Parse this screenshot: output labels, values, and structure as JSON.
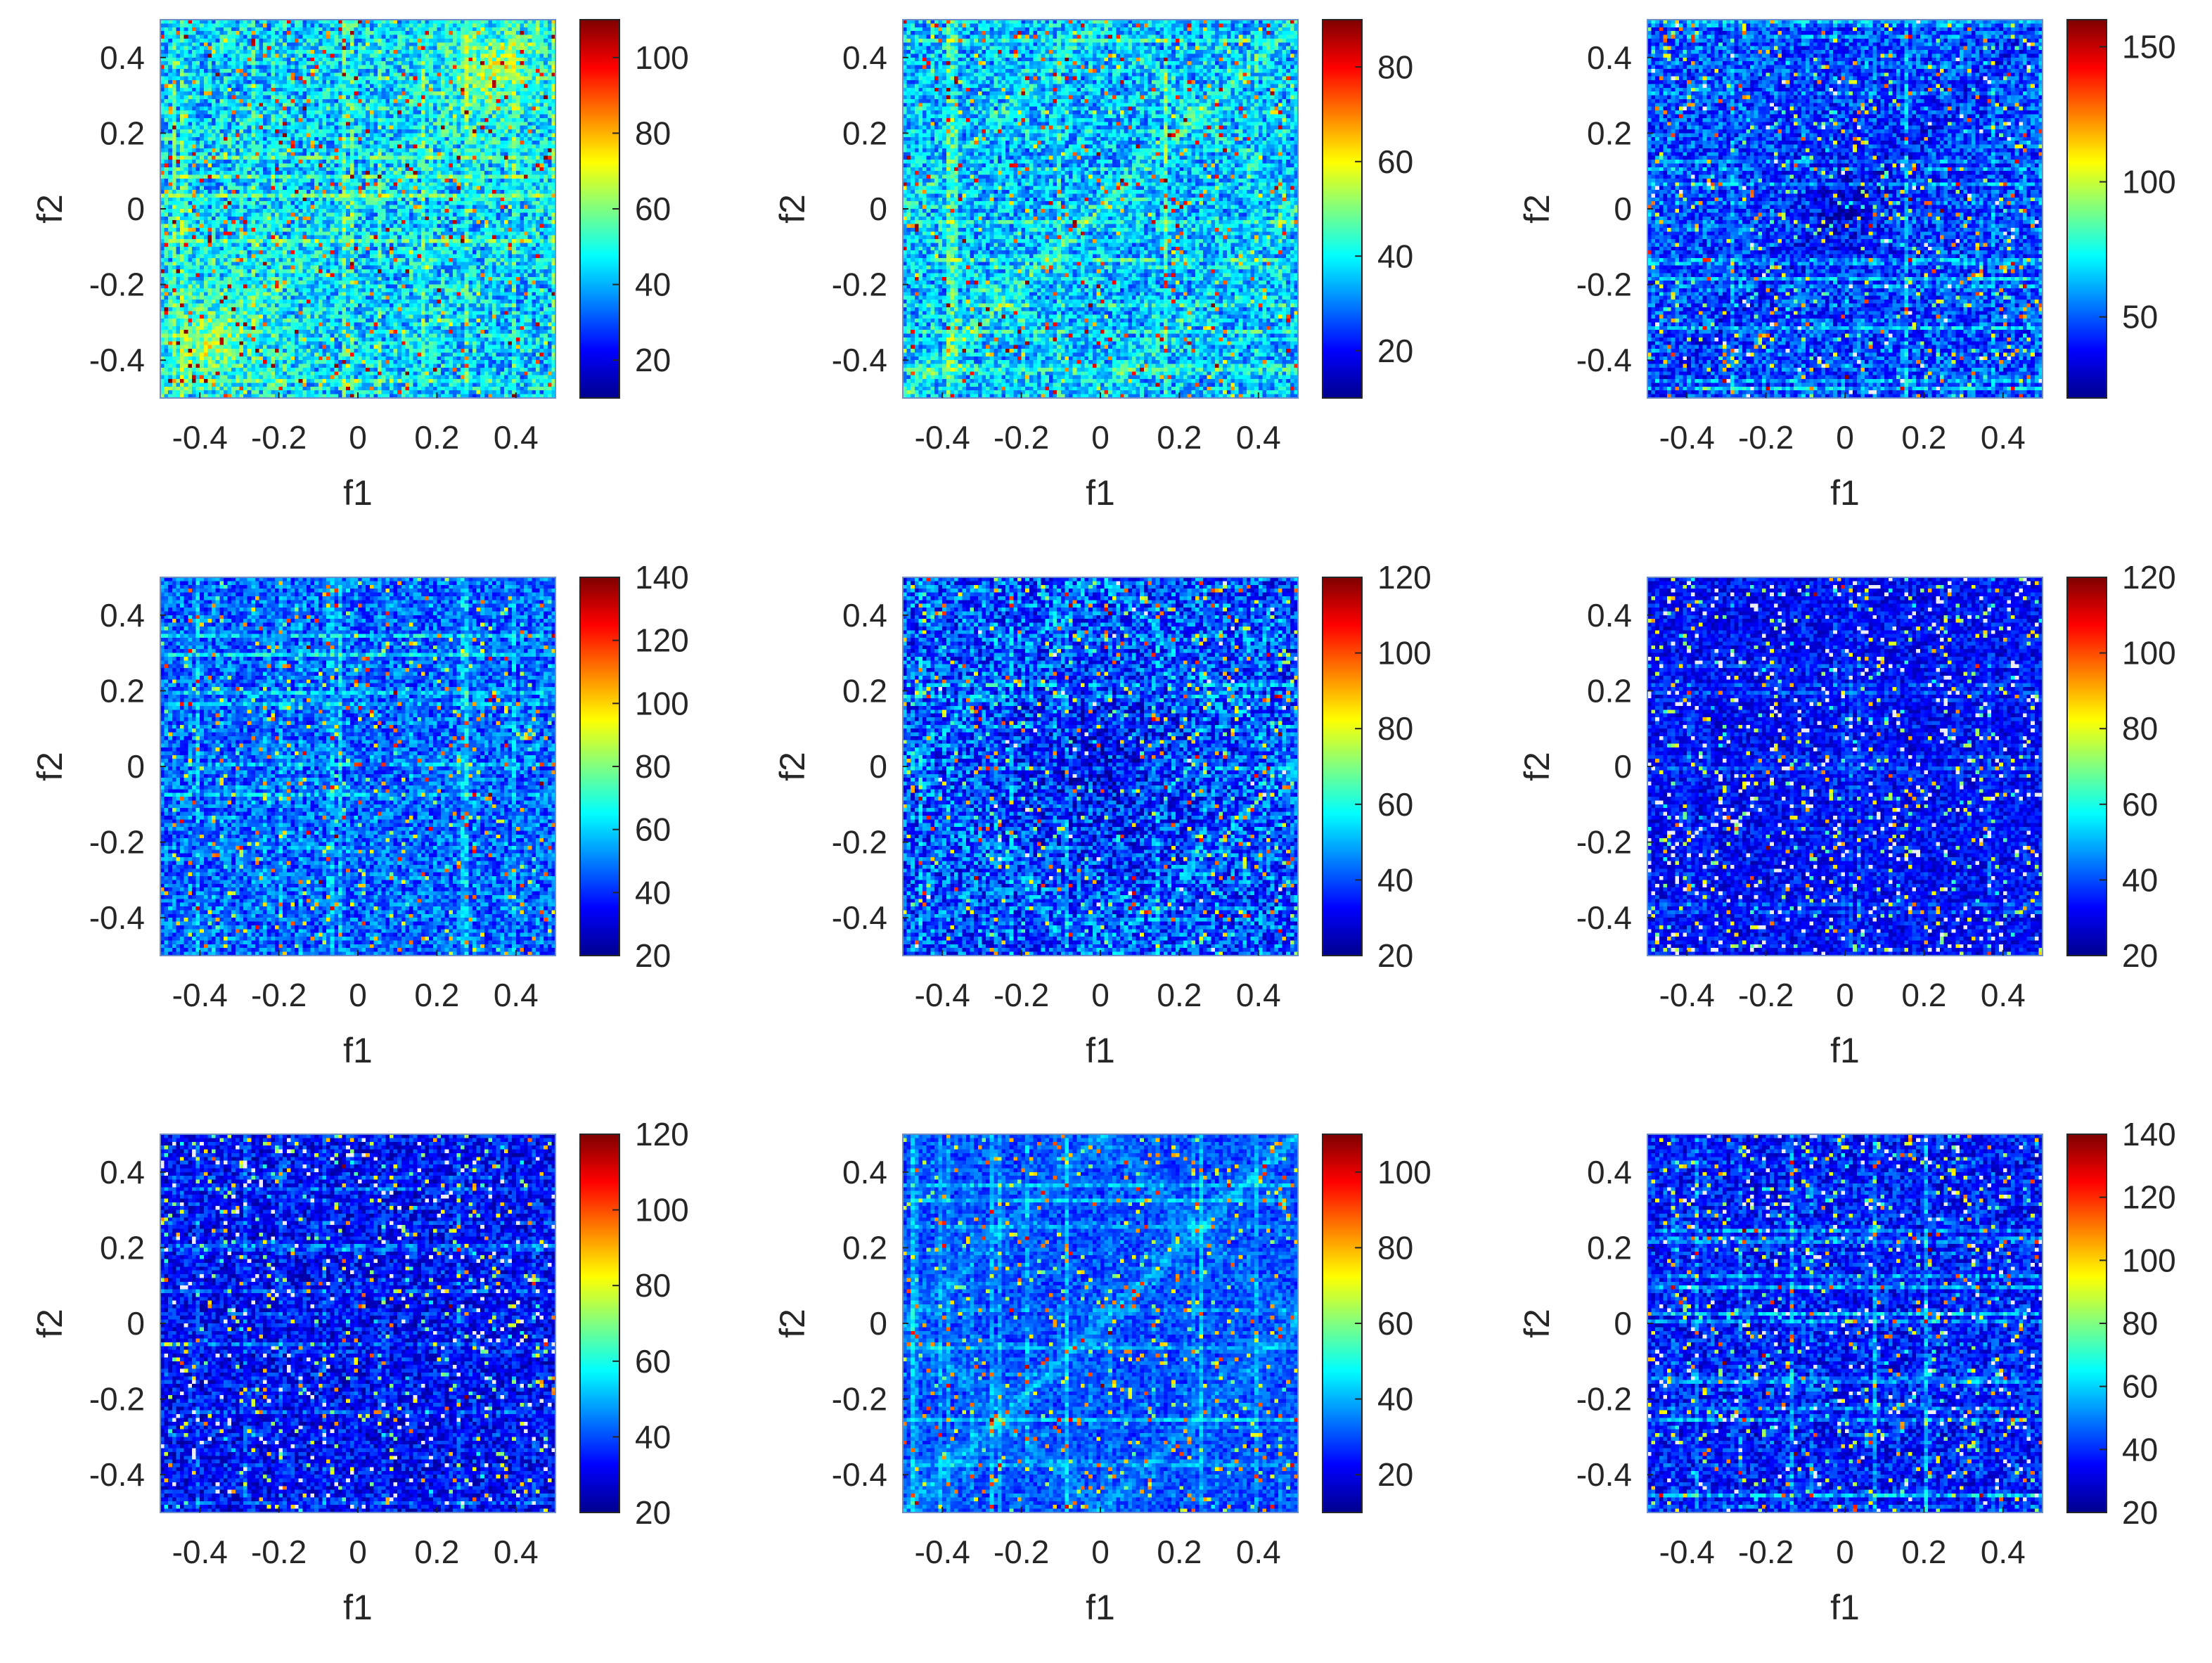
{
  "figure": {
    "rows": 3,
    "cols": 3,
    "colormap": "jet",
    "colormap_stops": [
      "#00008f",
      "#0000ff",
      "#0080ff",
      "#00ffff",
      "#80ff80",
      "#ffff00",
      "#ff8000",
      "#ff0000",
      "#800000"
    ],
    "axis_color": "#262626"
  },
  "chart_data": [
    {
      "type": "heatmap",
      "xlabel": "f1",
      "ylabel": "f2",
      "xlim": [
        -0.5,
        0.5
      ],
      "ylim": [
        -0.5,
        0.5
      ],
      "xticks": [
        -0.4,
        -0.2,
        0,
        0.2,
        0.4
      ],
      "xtick_labels": [
        "-0.4",
        "-0.2",
        "0",
        "0.2",
        "0.4"
      ],
      "yticks": [
        0.4,
        0.2,
        0,
        -0.2,
        -0.4
      ],
      "ytick_labels": [
        "0.4",
        "0.2",
        "0",
        "-0.2",
        "-0.4"
      ],
      "colorbar": {
        "clim": [
          10,
          110
        ],
        "ticks": [
          20,
          40,
          60,
          80,
          100
        ],
        "tick_labels": [
          "20",
          "40",
          "60",
          "80",
          "100"
        ]
      },
      "pattern": {
        "seed": 11,
        "base": 0.32,
        "speckle": 0.28,
        "diag": 0.06,
        "grid": 0.1,
        "corners": 0.25,
        "white": 0.0,
        "dark_center": 0.0
      }
    },
    {
      "type": "heatmap",
      "xlabel": "f1",
      "ylabel": "f2",
      "xlim": [
        -0.5,
        0.5
      ],
      "ylim": [
        -0.5,
        0.5
      ],
      "xticks": [
        -0.4,
        -0.2,
        0,
        0.2,
        0.4
      ],
      "xtick_labels": [
        "-0.4",
        "-0.2",
        "0",
        "0.2",
        "0.4"
      ],
      "yticks": [
        0.4,
        0.2,
        0,
        -0.2,
        -0.4
      ],
      "ytick_labels": [
        "0.4",
        "0.2",
        "0",
        "-0.2",
        "-0.4"
      ],
      "colorbar": {
        "clim": [
          10,
          90
        ],
        "ticks": [
          20,
          40,
          60,
          80
        ],
        "tick_labels": [
          "20",
          "40",
          "60",
          "80"
        ]
      },
      "pattern": {
        "seed": 22,
        "base": 0.3,
        "speckle": 0.26,
        "diag": 0.12,
        "grid": 0.1,
        "corners": 0.0,
        "white": 0.0,
        "dark_center": 0.0
      }
    },
    {
      "type": "heatmap",
      "xlabel": "f1",
      "ylabel": "f2",
      "xlim": [
        -0.5,
        0.5
      ],
      "ylim": [
        -0.5,
        0.5
      ],
      "xticks": [
        -0.4,
        -0.2,
        0,
        0.2,
        0.4
      ],
      "xtick_labels": [
        "-0.4",
        "-0.2",
        "0",
        "0.2",
        "0.4"
      ],
      "yticks": [
        0.4,
        0.2,
        0,
        -0.2,
        -0.4
      ],
      "ytick_labels": [
        "0.4",
        "0.2",
        "0",
        "-0.2",
        "-0.4"
      ],
      "colorbar": {
        "clim": [
          20,
          160
        ],
        "ticks": [
          50,
          100,
          150
        ],
        "tick_labels": [
          "50",
          "100",
          "150"
        ]
      },
      "pattern": {
        "seed": 33,
        "base": 0.2,
        "speckle": 0.24,
        "diag": 0.0,
        "grid": 0.08,
        "corners": 0.0,
        "white": 0.01,
        "dark_center": 0.1
      }
    },
    {
      "type": "heatmap",
      "xlabel": "f1",
      "ylabel": "f2",
      "xlim": [
        -0.5,
        0.5
      ],
      "ylim": [
        -0.5,
        0.5
      ],
      "xticks": [
        -0.4,
        -0.2,
        0,
        0.2,
        0.4
      ],
      "xtick_labels": [
        "-0.4",
        "-0.2",
        "0",
        "0.2",
        "0.4"
      ],
      "yticks": [
        0.4,
        0.2,
        0,
        -0.2,
        -0.4
      ],
      "ytick_labels": [
        "0.4",
        "0.2",
        "0",
        "-0.2",
        "-0.4"
      ],
      "colorbar": {
        "clim": [
          20,
          140
        ],
        "ticks": [
          20,
          40,
          60,
          80,
          100,
          120,
          140
        ],
        "tick_labels": [
          "20",
          "40",
          "60",
          "80",
          "100",
          "120",
          "140"
        ]
      },
      "pattern": {
        "seed": 44,
        "base": 0.22,
        "speckle": 0.22,
        "diag": 0.0,
        "grid": 0.08,
        "corners": 0.0,
        "white": 0.0,
        "dark_center": 0.0
      }
    },
    {
      "type": "heatmap",
      "xlabel": "f1",
      "ylabel": "f2",
      "xlim": [
        -0.5,
        0.5
      ],
      "ylim": [
        -0.5,
        0.5
      ],
      "xticks": [
        -0.4,
        -0.2,
        0,
        0.2,
        0.4
      ],
      "xtick_labels": [
        "-0.4",
        "-0.2",
        "0",
        "0.2",
        "0.4"
      ],
      "yticks": [
        0.4,
        0.2,
        0,
        -0.2,
        -0.4
      ],
      "ytick_labels": [
        "0.4",
        "0.2",
        "0",
        "-0.2",
        "-0.4"
      ],
      "colorbar": {
        "clim": [
          20,
          120
        ],
        "ticks": [
          20,
          40,
          60,
          80,
          100,
          120
        ],
        "tick_labels": [
          "20",
          "40",
          "60",
          "80",
          "100",
          "120"
        ]
      },
      "pattern": {
        "seed": 55,
        "base": 0.2,
        "speckle": 0.3,
        "diag": 0.1,
        "grid": 0.06,
        "corners": 0.0,
        "white": 0.005,
        "dark_center": 0.12
      }
    },
    {
      "type": "heatmap",
      "xlabel": "f1",
      "ylabel": "f2",
      "xlim": [
        -0.5,
        0.5
      ],
      "ylim": [
        -0.5,
        0.5
      ],
      "xticks": [
        -0.4,
        -0.2,
        0,
        0.2,
        0.4
      ],
      "xtick_labels": [
        "-0.4",
        "-0.2",
        "0",
        "0.2",
        "0.4"
      ],
      "yticks": [
        0.4,
        0.2,
        0,
        -0.2,
        -0.4
      ],
      "ytick_labels": [
        "0.4",
        "0.2",
        "0",
        "-0.2",
        "-0.4"
      ],
      "colorbar": {
        "clim": [
          20,
          120
        ],
        "ticks": [
          20,
          40,
          60,
          80,
          100,
          120
        ],
        "tick_labels": [
          "20",
          "40",
          "60",
          "80",
          "100",
          "120"
        ]
      },
      "pattern": {
        "seed": 66,
        "base": 0.12,
        "speckle": 0.18,
        "diag": 0.0,
        "grid": 0.05,
        "corners": 0.0,
        "white": 0.04,
        "dark_center": 0.0
      }
    },
    {
      "type": "heatmap",
      "xlabel": "f1",
      "ylabel": "f2",
      "xlim": [
        -0.5,
        0.5
      ],
      "ylim": [
        -0.5,
        0.5
      ],
      "xticks": [
        -0.4,
        -0.2,
        0,
        0.2,
        0.4
      ],
      "xtick_labels": [
        "-0.4",
        "-0.2",
        "0",
        "0.2",
        "0.4"
      ],
      "yticks": [
        0.4,
        0.2,
        0,
        -0.2,
        -0.4
      ],
      "ytick_labels": [
        "0.4",
        "0.2",
        "0",
        "-0.2",
        "-0.4"
      ],
      "colorbar": {
        "clim": [
          20,
          120
        ],
        "ticks": [
          20,
          40,
          60,
          80,
          100,
          120
        ],
        "tick_labels": [
          "20",
          "40",
          "60",
          "80",
          "100",
          "120"
        ]
      },
      "pattern": {
        "seed": 77,
        "base": 0.12,
        "speckle": 0.22,
        "diag": 0.0,
        "grid": 0.06,
        "corners": 0.0,
        "white": 0.025,
        "dark_center": 0.0
      }
    },
    {
      "type": "heatmap",
      "xlabel": "f1",
      "ylabel": "f2",
      "xlim": [
        -0.5,
        0.5
      ],
      "ylim": [
        -0.5,
        0.5
      ],
      "xticks": [
        -0.4,
        -0.2,
        0,
        0.2,
        0.4
      ],
      "xtick_labels": [
        "-0.4",
        "-0.2",
        "0",
        "0.2",
        "0.4"
      ],
      "yticks": [
        0.4,
        0.2,
        0,
        -0.2,
        -0.4
      ],
      "ytick_labels": [
        "0.4",
        "0.2",
        "0",
        "-0.2",
        "-0.4"
      ],
      "colorbar": {
        "clim": [
          10,
          110
        ],
        "ticks": [
          20,
          40,
          60,
          80,
          100
        ],
        "tick_labels": [
          "20",
          "40",
          "60",
          "80",
          "100"
        ]
      },
      "pattern": {
        "seed": 88,
        "base": 0.2,
        "speckle": 0.14,
        "diag": 0.1,
        "grid": 0.08,
        "corners": 0.0,
        "white": 0.0,
        "dark_center": 0.0
      }
    },
    {
      "type": "heatmap",
      "xlabel": "f1",
      "ylabel": "f2",
      "xlim": [
        -0.5,
        0.5
      ],
      "ylim": [
        -0.5,
        0.5
      ],
      "xticks": [
        -0.4,
        -0.2,
        0,
        0.2,
        0.4
      ],
      "xtick_labels": [
        "-0.4",
        "-0.2",
        "0",
        "0.2",
        "0.4"
      ],
      "yticks": [
        0.4,
        0.2,
        0,
        -0.2,
        -0.4
      ],
      "ytick_labels": [
        "0.4",
        "0.2",
        "0",
        "-0.2",
        "-0.4"
      ],
      "colorbar": {
        "clim": [
          20,
          140
        ],
        "ticks": [
          20,
          40,
          60,
          80,
          100,
          120,
          140
        ],
        "tick_labels": [
          "20",
          "40",
          "60",
          "80",
          "100",
          "120",
          "140"
        ]
      },
      "pattern": {
        "seed": 99,
        "base": 0.14,
        "speckle": 0.22,
        "diag": 0.0,
        "grid": 0.1,
        "corners": 0.0,
        "white": 0.02,
        "dark_center": 0.0
      }
    }
  ]
}
